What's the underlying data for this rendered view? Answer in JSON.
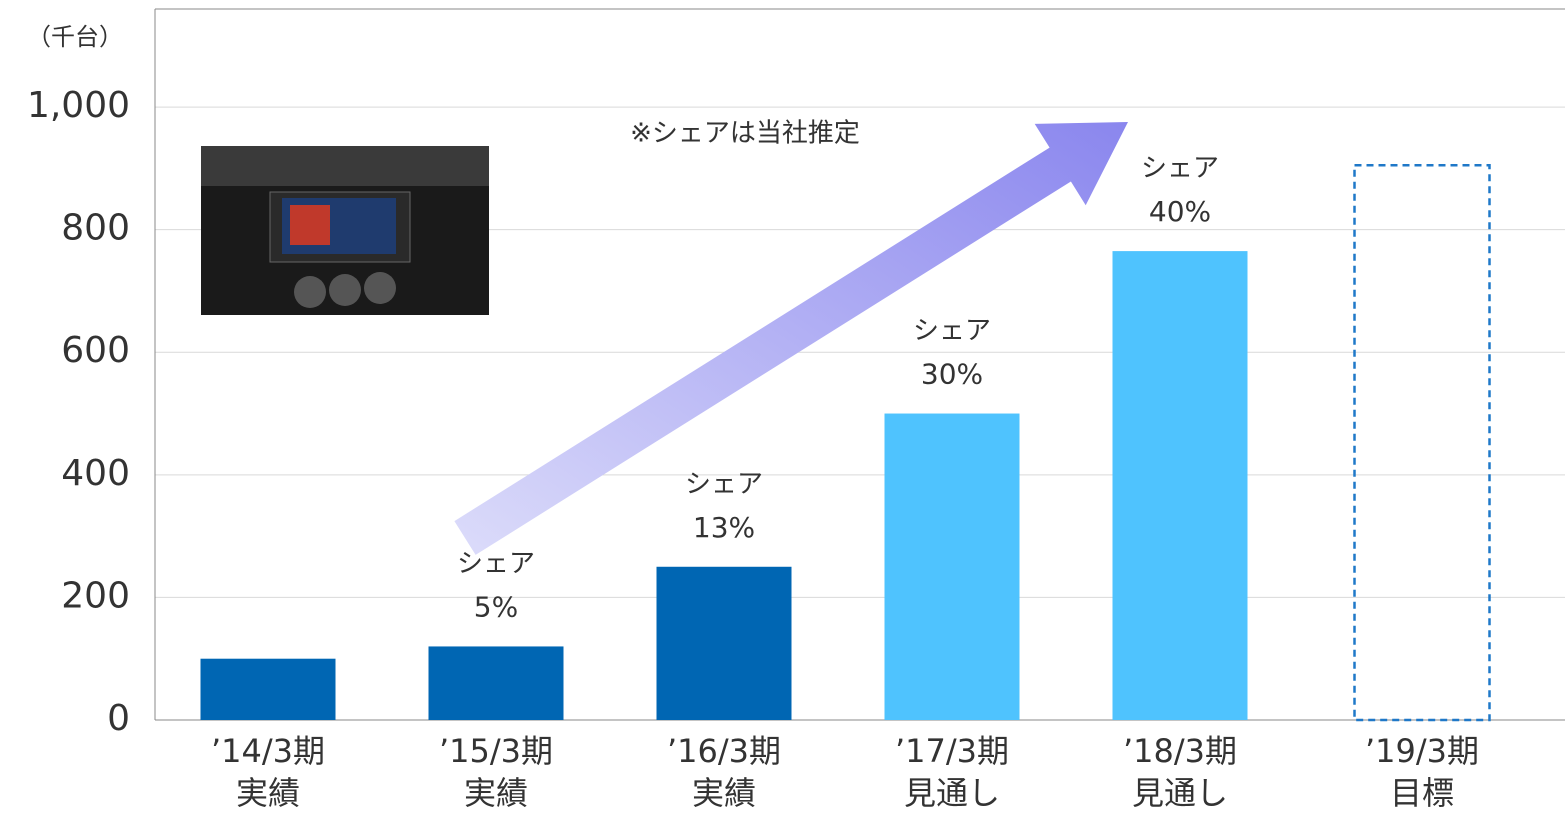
{
  "chart_data": {
    "type": "bar",
    "unit_label": "（千台）",
    "note": "※シェアは当社推定",
    "categories": [
      "’14/3期",
      "’15/3期",
      "’16/3期",
      "’17/3期",
      "’18/3期",
      "’19/3期"
    ],
    "category_sublabels": [
      "実績",
      "実績",
      "実績",
      "見通し",
      "見通し",
      "目標"
    ],
    "values": [
      100,
      120,
      250,
      500,
      765,
      905
    ],
    "colors": [
      "#0066b3",
      "#0066b3",
      "#0066b3",
      "#4fc3fe",
      "#4fc3fe",
      "#1f78c8"
    ],
    "dashed": [
      false,
      false,
      false,
      false,
      false,
      true
    ],
    "share_title": "シェア",
    "shares": [
      null,
      5,
      13,
      30,
      40,
      null
    ],
    "share_labels": [
      null,
      "5%",
      "13%",
      "30%",
      "40%",
      null
    ],
    "ylim": [
      0,
      1160
    ],
    "yticks": [
      0,
      200,
      400,
      600,
      800,
      {
        "value": 1000,
        "label": "1,000"
      }
    ],
    "grid": true
  }
}
